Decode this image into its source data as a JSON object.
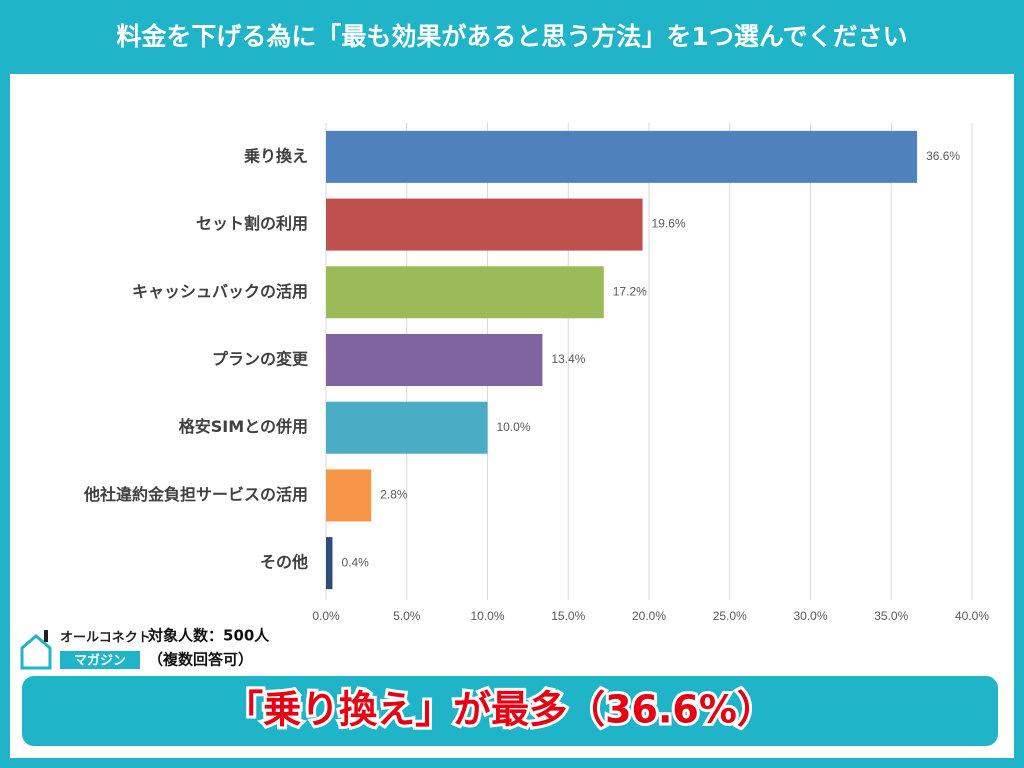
{
  "chart_data": {
    "type": "hbar",
    "title": "料金を下げる為に「最も効果があると思う方法」を1つ選んでください",
    "categories": [
      "乗り換え",
      "セット割の利用",
      "キャッシュバックの活用",
      "プランの変更",
      "格安SIMとの併用",
      "他社違約金負担サービスの活用",
      "その他"
    ],
    "values": [
      36.6,
      19.6,
      17.2,
      13.4,
      10.0,
      2.8,
      0.4
    ],
    "value_labels": [
      "36.6%",
      "19.6%",
      "17.2%",
      "13.4%",
      "10.0%",
      "2.8%",
      "0.4%"
    ],
    "colors": [
      "#4f81bd",
      "#c0504d",
      "#9bbb59",
      "#8064a2",
      "#4bacc6",
      "#f79646",
      "#2c4d75"
    ],
    "xlim": [
      0,
      40
    ],
    "xticks": [
      {
        "value": 0,
        "label": "0.0%"
      },
      {
        "value": 5,
        "label": "5.0%"
      },
      {
        "value": 10,
        "label": "10.0%"
      },
      {
        "value": 15,
        "label": "15.0%"
      },
      {
        "value": 20,
        "label": "20.0%"
      },
      {
        "value": 25,
        "label": "25.0%"
      },
      {
        "value": 30,
        "label": "30.0%"
      },
      {
        "value": 35,
        "label": "35.0%"
      },
      {
        "value": 40,
        "label": "40.0%"
      }
    ],
    "grid": true
  },
  "footer": {
    "logo_name": "オールコネクト",
    "logo_sub": "マガジン",
    "sample": "対象人数：500人",
    "note": "（複数回答可）",
    "callout": "「乗り換え」が最多（36.6%）"
  }
}
